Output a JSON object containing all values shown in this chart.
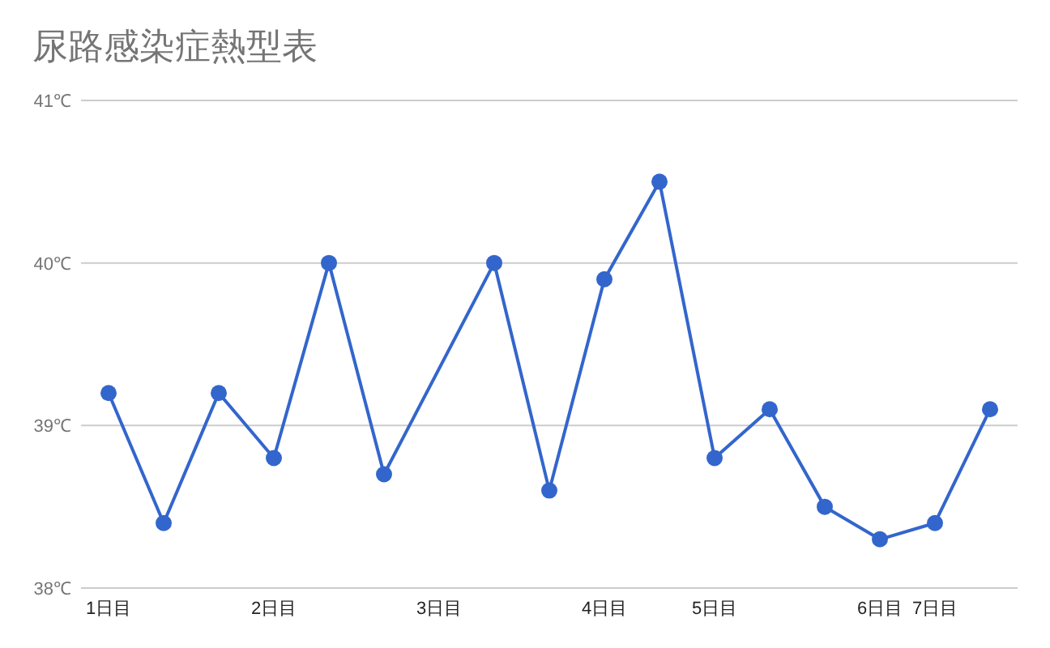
{
  "chart_data": {
    "type": "line",
    "title": "尿路感染症熱型表",
    "categories": [
      "1日目",
      null,
      null,
      "2日目",
      null,
      null,
      "3日目",
      null,
      null,
      "4日目",
      null,
      "5日目",
      null,
      null,
      "6日目",
      "7日目",
      null
    ],
    "series": [
      {
        "color": "#3366cc",
        "values": [
          39.2,
          38.4,
          39.2,
          38.8,
          40.0,
          38.7,
          null,
          40.0,
          38.6,
          39.9,
          40.5,
          38.8,
          39.1,
          38.5,
          38.3,
          38.4,
          39.1
        ]
      }
    ],
    "ylim": [
      38,
      41
    ],
    "yticks": [
      {
        "value": 38,
        "label": "38℃"
      },
      {
        "value": 39,
        "label": "39℃"
      },
      {
        "value": 40,
        "label": "40℃"
      },
      {
        "value": 41,
        "label": "41℃"
      }
    ],
    "grid": "y",
    "marker": "circle"
  }
}
